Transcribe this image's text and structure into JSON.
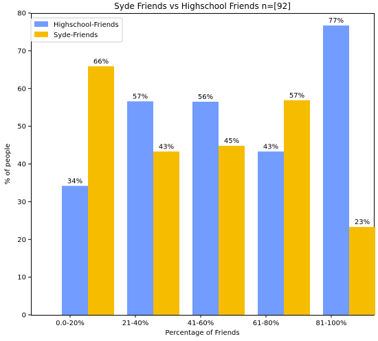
{
  "chart_data": {
    "type": "bar",
    "title": "Syde Friends vs Highschool Friends n=[92]",
    "xlabel": "Percentage of Friends",
    "ylabel": "% of people",
    "categories": [
      "0.0-20%",
      "21-40%",
      "41-60%",
      "61-80%",
      "81-100%"
    ],
    "series": [
      {
        "name": "Highschool-Friends",
        "color": "#729cff",
        "values": [
          34.2,
          56.6,
          56.5,
          43.3,
          76.7
        ],
        "labels": [
          "34%",
          "57%",
          "56%",
          "43%",
          "77%"
        ]
      },
      {
        "name": "Syde-Friends",
        "color": "#f5bc00",
        "values": [
          65.9,
          43.3,
          44.8,
          56.9,
          23.3
        ],
        "labels": [
          "66%",
          "43%",
          "45%",
          "57%",
          "23%"
        ]
      }
    ],
    "ylim": [
      0,
      80
    ],
    "yticks": [
      "0",
      "10",
      "20",
      "30",
      "40",
      "50",
      "60",
      "70",
      "80"
    ],
    "grid": false,
    "legend_position": "top-left"
  }
}
